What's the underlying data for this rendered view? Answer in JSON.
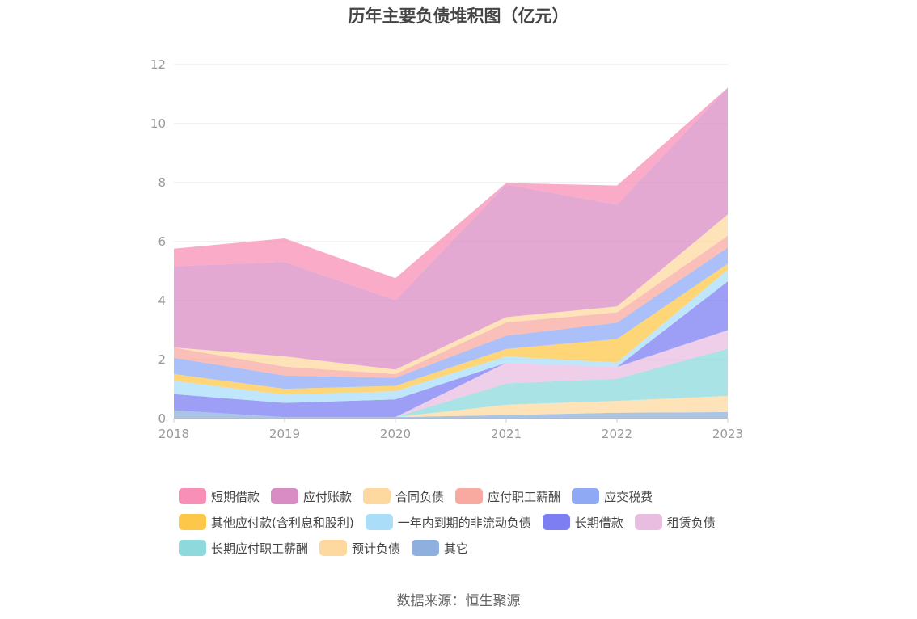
{
  "chart_data": {
    "type": "area",
    "title": "历年主要负债堆积图（亿元）",
    "x": [
      "2018",
      "2019",
      "2020",
      "2021",
      "2022",
      "2023"
    ],
    "ylim": [
      0,
      12
    ],
    "yticks": [
      "0",
      "2",
      "4",
      "6",
      "8",
      "10",
      "12"
    ],
    "grid": true,
    "legend_position": "bottom",
    "series": [
      {
        "name": "其它",
        "color": "#8fb0de",
        "values": [
          0.28,
          0.05,
          0.05,
          0.12,
          0.2,
          0.22
        ]
      },
      {
        "name": "预计负债",
        "color": "#fdd9a0",
        "values": [
          0,
          0,
          0,
          0.35,
          0.4,
          0.55
        ]
      },
      {
        "name": "长期应付职工薪酬",
        "color": "#8dd9dc",
        "values": [
          0,
          0,
          0,
          0.72,
          0.75,
          1.6
        ]
      },
      {
        "name": "租赁负债",
        "color": "#e8bde0",
        "values": [
          0,
          0,
          0,
          0.7,
          0.4,
          0.63
        ]
      },
      {
        "name": "长期借款",
        "color": "#7c7ef2",
        "values": [
          0.55,
          0.48,
          0.6,
          0,
          0,
          1.65
        ]
      },
      {
        "name": "一年内到期的非流动负债",
        "color": "#a9ddf8",
        "values": [
          0.45,
          0.28,
          0.28,
          0.22,
          0.15,
          0.4
        ]
      },
      {
        "name": "其他应付款(含利息和股利)",
        "color": "#fdc84a",
        "values": [
          0.23,
          0.2,
          0.18,
          0.25,
          0.8,
          0.2
        ]
      },
      {
        "name": "应交税费",
        "color": "#8fa9f5",
        "values": [
          0.55,
          0.45,
          0.27,
          0.45,
          0.55,
          0.55
        ]
      },
      {
        "name": "应付职工薪酬",
        "color": "#f8aaa0",
        "values": [
          0.35,
          0.3,
          0.13,
          0.45,
          0.35,
          0.4
        ]
      },
      {
        "name": "合同负债",
        "color": "#fdd9a0",
        "values": [
          0,
          0.35,
          0.15,
          0.18,
          0.2,
          0.72
        ]
      },
      {
        "name": "应付账款",
        "color": "#d98cc4",
        "values": [
          2.75,
          3.2,
          2.35,
          4.5,
          3.45,
          4.3
        ]
      },
      {
        "name": "短期借款",
        "color": "#f78fb6",
        "values": [
          0.6,
          0.8,
          0.75,
          0.05,
          0.65,
          0
        ]
      }
    ],
    "legend_rows": [
      [
        {
          "name": "短期借款",
          "color": "#f78fb6"
        },
        {
          "name": "应付账款",
          "color": "#d98cc4"
        },
        {
          "name": "合同负债",
          "color": "#fdd9a0"
        },
        {
          "name": "应付职工薪酬",
          "color": "#f8aaa0"
        },
        {
          "name": "应交税费",
          "color": "#8fa9f5"
        }
      ],
      [
        {
          "name": "其他应付款(含利息和股利)",
          "color": "#fdc84a"
        },
        {
          "name": "一年内到期的非流动负债",
          "color": "#a9ddf8"
        },
        {
          "name": "长期借款",
          "color": "#7c7ef2"
        },
        {
          "name": "租赁负债",
          "color": "#e8bde0"
        }
      ],
      [
        {
          "name": "长期应付职工薪酬",
          "color": "#8dd9dc"
        },
        {
          "name": "预计负债",
          "color": "#fdd9a0"
        },
        {
          "name": "其它",
          "color": "#8fb0de"
        }
      ]
    ]
  },
  "source": "数据来源：恒生聚源"
}
